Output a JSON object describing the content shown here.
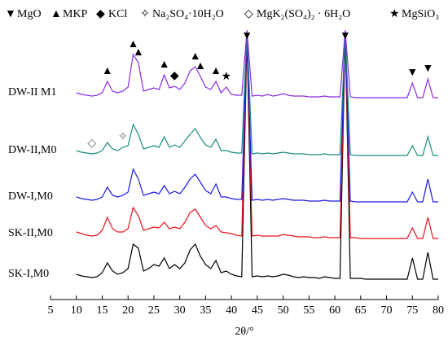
{
  "chart_data": {
    "type": "line",
    "x_label": "2θ/°",
    "legend": [
      {
        "symbol": "▼",
        "label": "MgO"
      },
      {
        "symbol": "▲",
        "label": "MKP"
      },
      {
        "symbol": "◆",
        "label": "KCl"
      },
      {
        "symbol": "✧",
        "label": "Na₂SO₄·10H₂O"
      },
      {
        "symbol": "◇",
        "label": "MgK₂(SO₄)₂ · 6H₂O"
      },
      {
        "symbol": "★",
        "label": "MgSiO₃"
      }
    ],
    "xlim": [
      5,
      80
    ],
    "xticks": [
      5,
      10,
      15,
      20,
      25,
      30,
      35,
      40,
      45,
      50,
      55,
      60,
      65,
      70,
      75,
      80
    ],
    "x": [
      10,
      11,
      12,
      13,
      14,
      15,
      16,
      17,
      18,
      19,
      20,
      21,
      22,
      23,
      24,
      25,
      26,
      27,
      28,
      29,
      30,
      31,
      32,
      33,
      34,
      35,
      36,
      37,
      38,
      39,
      40,
      41,
      42,
      43,
      44,
      45,
      46,
      47,
      48,
      49,
      50,
      51,
      52,
      53,
      54,
      55,
      56,
      57,
      58,
      59,
      60,
      61,
      62,
      63,
      64,
      65,
      66,
      67,
      68,
      69,
      70,
      71,
      72,
      73,
      74,
      75,
      76,
      77,
      78,
      79,
      80
    ],
    "series": [
      {
        "name": "SK-I,M0",
        "color": "#000000",
        "values": [
          8,
          6,
          5,
          4,
          5,
          10,
          22,
          12,
          8,
          10,
          15,
          45,
          40,
          12,
          15,
          20,
          18,
          28,
          15,
          20,
          15,
          22,
          38,
          45,
          30,
          20,
          15,
          25,
          10,
          12,
          8,
          6,
          5,
          300,
          5,
          6,
          5,
          6,
          5,
          6,
          8,
          7,
          5,
          4,
          5,
          4,
          4,
          3,
          5,
          4,
          3,
          3,
          305,
          3,
          3,
          3,
          2,
          2,
          2,
          2,
          2,
          2,
          2,
          2,
          2,
          28,
          2,
          2,
          35,
          2,
          2
        ]
      },
      {
        "name": "SK-II,M0",
        "color": "#e8141c",
        "values": [
          10,
          8,
          6,
          5,
          6,
          12,
          28,
          14,
          10,
          10,
          14,
          40,
          30,
          12,
          14,
          16,
          15,
          22,
          14,
          16,
          14,
          22,
          34,
          38,
          28,
          18,
          14,
          18,
          10,
          9,
          8,
          6,
          5,
          255,
          5,
          6,
          5,
          5,
          5,
          5,
          7,
          6,
          5,
          4,
          4,
          4,
          3,
          3,
          4,
          3,
          3,
          3,
          255,
          3,
          3,
          2,
          2,
          2,
          2,
          2,
          2,
          2,
          2,
          2,
          2,
          15,
          2,
          2,
          28,
          2,
          2
        ]
      },
      {
        "name": "DW-I,M0",
        "color": "#1a1ae0",
        "values": [
          8,
          6,
          5,
          4,
          5,
          8,
          20,
          10,
          8,
          10,
          14,
          42,
          30,
          10,
          12,
          14,
          12,
          22,
          12,
          15,
          12,
          20,
          30,
          36,
          26,
          16,
          12,
          24,
          8,
          8,
          6,
          5,
          5,
          210,
          4,
          5,
          4,
          5,
          4,
          5,
          6,
          5,
          4,
          4,
          4,
          3,
          3,
          3,
          4,
          3,
          3,
          3,
          210,
          3,
          2,
          2,
          2,
          2,
          2,
          2,
          2,
          2,
          2,
          2,
          2,
          14,
          2,
          2,
          30,
          2,
          2
        ]
      },
      {
        "name": "DW-II,M0",
        "color": "#1a8a80",
        "values": [
          8,
          6,
          5,
          4,
          5,
          8,
          18,
          10,
          8,
          12,
          14,
          40,
          28,
          10,
          12,
          14,
          12,
          25,
          12,
          15,
          12,
          20,
          28,
          35,
          24,
          15,
          12,
          22,
          8,
          8,
          6,
          5,
          5,
          155,
          4,
          5,
          4,
          5,
          4,
          5,
          6,
          5,
          4,
          4,
          4,
          3,
          3,
          3,
          4,
          3,
          3,
          3,
          155,
          3,
          2,
          2,
          2,
          2,
          2,
          2,
          2,
          2,
          2,
          2,
          2,
          14,
          2,
          2,
          25,
          2,
          2
        ],
        "markers": [
          {
            "symbol": "◇",
            "x": 13
          },
          {
            "symbol": "✧",
            "x": 19
          }
        ]
      },
      {
        "name": "DW-II M1",
        "color": "#8a2be2",
        "values": [
          8,
          6,
          5,
          4,
          5,
          8,
          22,
          10,
          8,
          10,
          15,
          55,
          45,
          10,
          12,
          14,
          12,
          30,
          14,
          16,
          12,
          20,
          35,
          40,
          28,
          15,
          12,
          22,
          8,
          15,
          6,
          5,
          5,
          85,
          4,
          5,
          4,
          6,
          4,
          5,
          7,
          5,
          4,
          4,
          4,
          3,
          3,
          3,
          4,
          3,
          3,
          3,
          85,
          3,
          2,
          2,
          2,
          2,
          2,
          2,
          2,
          2,
          2,
          2,
          2,
          20,
          2,
          2,
          25,
          2,
          2
        ],
        "markers": [
          {
            "symbol": "▲",
            "x": 16
          },
          {
            "symbol": "▲",
            "x": 21
          },
          {
            "symbol": "▲",
            "x": 22
          },
          {
            "symbol": "▲",
            "x": 27
          },
          {
            "symbol": "◆",
            "x": 29
          },
          {
            "symbol": "▲",
            "x": 33
          },
          {
            "symbol": "▲",
            "x": 34
          },
          {
            "symbol": "▲",
            "x": 37
          },
          {
            "symbol": "★",
            "x": 39
          },
          {
            "symbol": "▼",
            "x": 43
          },
          {
            "symbol": "▼",
            "x": 62
          },
          {
            "symbol": "▼",
            "x": 75
          },
          {
            "symbol": "▼",
            "x": 78
          }
        ]
      }
    ]
  }
}
